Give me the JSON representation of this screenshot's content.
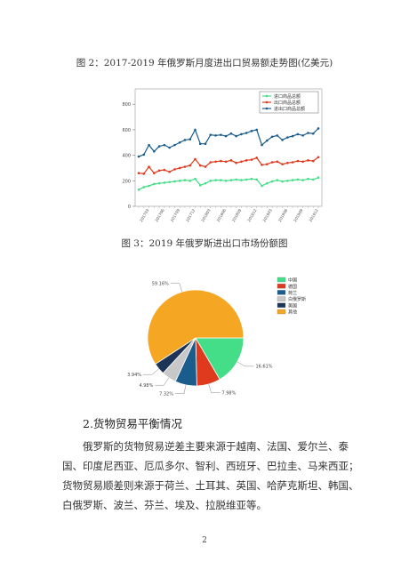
{
  "figure2": {
    "title": "图 2：2017-2019 年俄罗斯月度进出口贸易额走势图(亿美元)",
    "chart_data": {
      "type": "line",
      "x": [
        "201701",
        "201702",
        "201703",
        "201704",
        "201705",
        "201706",
        "201707",
        "201708",
        "201709",
        "201710",
        "201711",
        "201712",
        "201801",
        "201802",
        "201803",
        "201804",
        "201805",
        "201806",
        "201807",
        "201808",
        "201809",
        "201810",
        "201811",
        "201812",
        "201901",
        "201902",
        "201903",
        "201904",
        "201905",
        "201906",
        "201907",
        "201908",
        "201909",
        "201910",
        "201911",
        "201912"
      ],
      "xtick_labels": [
        "201703",
        "201706",
        "201709",
        "201712",
        "201803",
        "201806",
        "201809",
        "201812",
        "201903",
        "201906",
        "201909",
        "201912"
      ],
      "yticks": [
        0,
        200,
        400,
        600,
        800
      ],
      "ylim": [
        0,
        920
      ],
      "series": [
        {
          "name": "进口商品总额",
          "color": "#44dd88",
          "values": [
            130,
            150,
            160,
            175,
            180,
            185,
            190,
            195,
            200,
            205,
            200,
            215,
            165,
            180,
            200,
            205,
            205,
            200,
            205,
            210,
            205,
            210,
            215,
            210,
            160,
            180,
            195,
            205,
            195,
            200,
            205,
            210,
            205,
            215,
            210,
            225
          ]
        },
        {
          "name": "出口商品总额",
          "color": "#e03a1e",
          "values": [
            260,
            255,
            310,
            260,
            280,
            285,
            270,
            290,
            300,
            310,
            320,
            370,
            320,
            310,
            345,
            350,
            355,
            350,
            360,
            340,
            350,
            360,
            365,
            380,
            325,
            330,
            345,
            350,
            330,
            340,
            345,
            355,
            350,
            360,
            355,
            385
          ]
        },
        {
          "name": "进出口商品总额",
          "color": "#1a5d8c",
          "values": [
            390,
            405,
            480,
            430,
            470,
            480,
            460,
            480,
            500,
            520,
            525,
            600,
            490,
            490,
            560,
            555,
            560,
            550,
            570,
            550,
            565,
            575,
            590,
            600,
            480,
            515,
            545,
            555,
            520,
            540,
            550,
            565,
            555,
            575,
            570,
            610
          ]
        }
      ]
    }
  },
  "figure3": {
    "title": "图 3：2019 年俄罗斯进出口市场份额图",
    "chart_data": {
      "type": "pie",
      "slices": [
        {
          "name": "中国",
          "value": 16.61,
          "label": "16.61%",
          "color": "#44dd88"
        },
        {
          "name": "德国",
          "value": 7.98,
          "label": "7.98%",
          "color": "#e03a1e"
        },
        {
          "name": "荷兰",
          "value": 7.32,
          "label": "7.32%",
          "color": "#1a5d8c"
        },
        {
          "name": "白俄罗斯",
          "value": 4.98,
          "label": "4.98%",
          "color": "#c8c8c8"
        },
        {
          "name": "美国",
          "value": 3.94,
          "label": "3.94%",
          "color": "#1c3557"
        },
        {
          "name": "其他",
          "value": 59.16,
          "label": "59.16%",
          "color": "#f5a623"
        }
      ]
    }
  },
  "section": {
    "heading": "2.货物贸易平衡情况",
    "lines": [
      "俄罗斯的货物贸易逆差主要来源于越南、法国、爱尔兰、泰",
      "国、印度尼西亚、厄瓜多尔、智利、西班牙、巴拉圭、马来西亚；",
      "货物贸易顺差则来源于荷兰、土耳其、英国、哈萨克斯坦、韩国、",
      "白俄罗斯、波兰、芬兰、埃及、拉脱维亚等。"
    ]
  },
  "page_number": "2"
}
